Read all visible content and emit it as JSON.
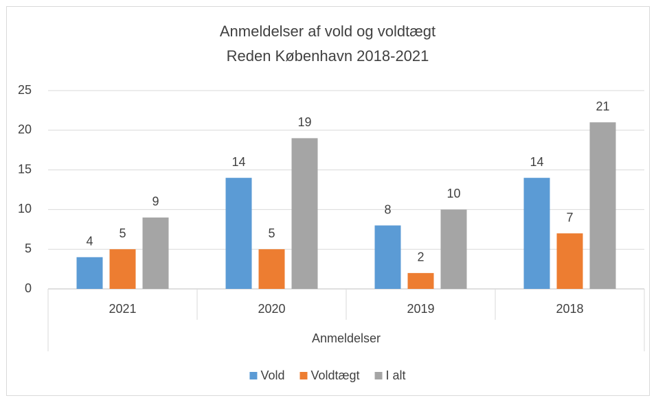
{
  "chart_data": {
    "type": "bar",
    "title": "Anmeldelser af vold og voldtægt",
    "subtitle": "Reden København 2018-2021",
    "x_label": "Anmeldelser",
    "categories": [
      "2021",
      "2020",
      "2019",
      "2018"
    ],
    "series": [
      {
        "name": "Vold",
        "color": "#5b9bd5",
        "values": [
          4,
          14,
          8,
          14
        ]
      },
      {
        "name": "Voldtægt",
        "color": "#ed7d31",
        "values": [
          5,
          5,
          2,
          7
        ]
      },
      {
        "name": "I alt",
        "color": "#a5a5a5",
        "values": [
          9,
          19,
          10,
          21
        ]
      }
    ],
    "ylim": [
      0,
      25
    ],
    "yticks": [
      0,
      5,
      10,
      15,
      20,
      25
    ],
    "grid": true,
    "legend": "bottom"
  }
}
